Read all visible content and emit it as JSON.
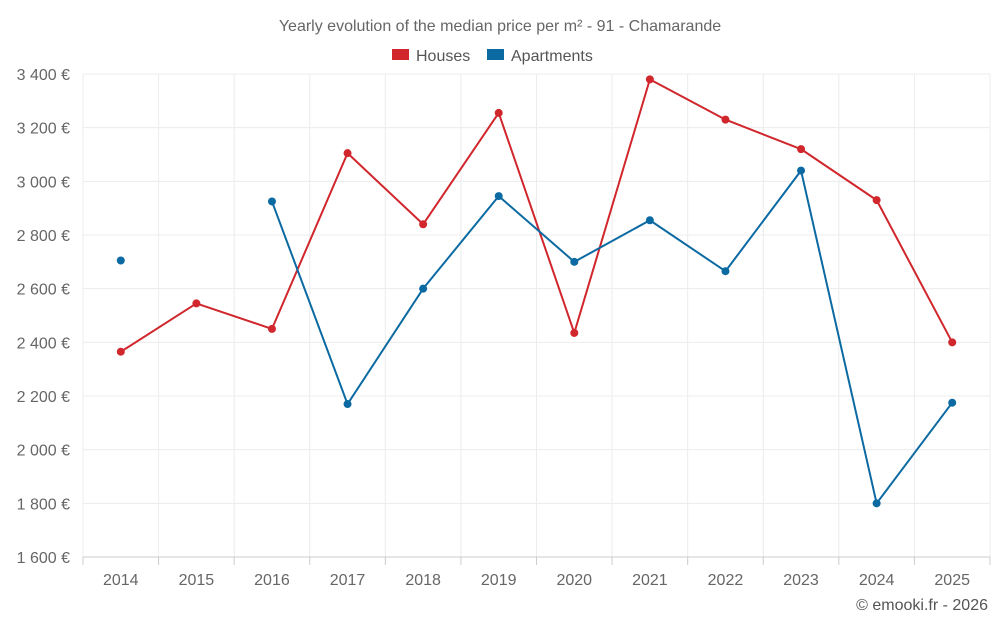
{
  "chart_data": {
    "type": "line",
    "title": "Yearly evolution of the median price per m² - 91 - Chamarande",
    "categories": [
      "2014",
      "2015",
      "2016",
      "2017",
      "2018",
      "2019",
      "2020",
      "2021",
      "2022",
      "2023",
      "2024",
      "2025"
    ],
    "series": [
      {
        "name": "Houses",
        "color": "#d0262c",
        "values": [
          2365,
          2545,
          2450,
          3105,
          2840,
          3255,
          2435,
          3380,
          3230,
          3120,
          2930,
          2400
        ]
      },
      {
        "name": "Apartments",
        "color": "#0b6aa2",
        "values": [
          2705,
          null,
          2925,
          2170,
          2600,
          2945,
          2700,
          2855,
          2665,
          3040,
          1800,
          2175
        ]
      }
    ],
    "ylim": [
      1600,
      3400
    ],
    "yticks": [
      1600,
      1800,
      2000,
      2200,
      2400,
      2600,
      2800,
      3000,
      3200,
      3400
    ],
    "ytick_labels": [
      "1 600 €",
      "1 800 €",
      "2 000 €",
      "2 200 €",
      "2 400 €",
      "2 600 €",
      "2 800 €",
      "3 000 €",
      "3 200 €",
      "3 400 €"
    ],
    "legend_position": "top-center",
    "grid": true
  },
  "credit": "© emooki.fr - 2026"
}
